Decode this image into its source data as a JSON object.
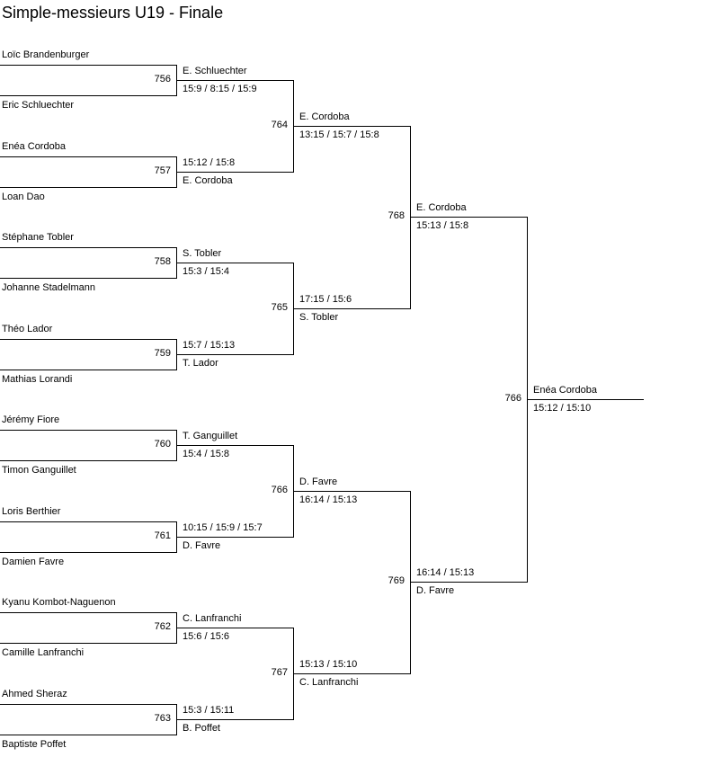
{
  "title": "Simple-messieurs U19 - Finale",
  "rounds": [
    {
      "matches": [
        {
          "number": "756",
          "players": [
            "Loïc Brandenburger",
            "Eric Schluechter"
          ],
          "winner": "E. Schluechter",
          "score": "15:9 / 8:15 / 15:9"
        },
        {
          "number": "757",
          "players": [
            "Enéa Cordoba",
            "Loan Dao"
          ],
          "winner": "E. Cordoba",
          "score": "15:12 / 15:8"
        },
        {
          "number": "758",
          "players": [
            "Stéphane Tobler",
            "Johanne Stadelmann"
          ],
          "winner": "S. Tobler",
          "score": "15:3 / 15:4"
        },
        {
          "number": "759",
          "players": [
            "Théo Lador",
            "Mathias Lorandi"
          ],
          "winner": "T. Lador",
          "score": "15:7 / 15:13"
        },
        {
          "number": "760",
          "players": [
            "Jérémy Fiore",
            "Timon Ganguillet"
          ],
          "winner": "T. Ganguillet",
          "score": "15:4 / 15:8"
        },
        {
          "number": "761",
          "players": [
            "Loris Berthier",
            "Damien Favre"
          ],
          "winner": "D. Favre",
          "score": "10:15 / 15:9 / 15:7"
        },
        {
          "number": "762",
          "players": [
            "Kyanu Kombot-Naguenon",
            "Camille Lanfranchi"
          ],
          "winner": "C. Lanfranchi",
          "score": "15:6 / 15:6"
        },
        {
          "number": "763",
          "players": [
            "Ahmed Sheraz",
            "Baptiste Poffet"
          ],
          "winner": "B. Poffet",
          "score": "15:3 / 15:11"
        }
      ]
    },
    {
      "matches": [
        {
          "number": "764",
          "winner": "E. Cordoba",
          "score": "13:15 / 15:7 / 15:8"
        },
        {
          "number": "765",
          "winner": "S. Tobler",
          "score": "17:15 / 15:6"
        },
        {
          "number": "766",
          "winner": "D. Favre",
          "score": "16:14 / 15:13"
        },
        {
          "number": "767",
          "winner": "C. Lanfranchi",
          "score": "15:13 / 15:10"
        }
      ]
    },
    {
      "matches": [
        {
          "number": "768",
          "winner": "E. Cordoba",
          "score": "15:13 / 15:8"
        },
        {
          "number": "769",
          "winner": "D. Favre",
          "score": "16:14 / 15:13"
        }
      ]
    },
    {
      "matches": [
        {
          "number": "766",
          "winner": "Enéa Cordoba",
          "score": "15:12 / 15:10"
        }
      ]
    }
  ]
}
